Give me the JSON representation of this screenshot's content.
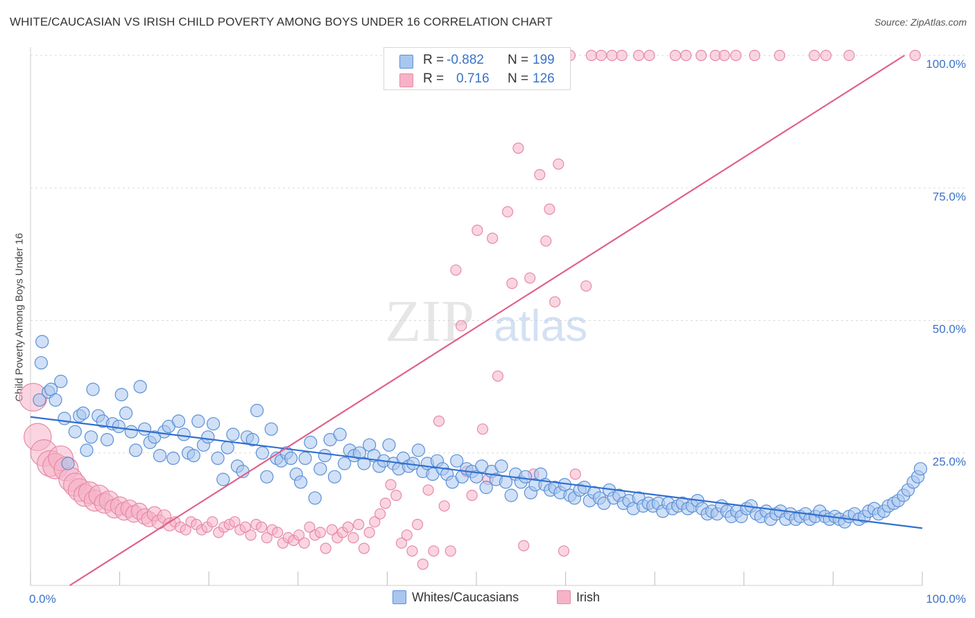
{
  "title": "WHITE/CAUCASIAN VS IRISH CHILD POVERTY AMONG BOYS UNDER 16 CORRELATION CHART",
  "source": "Source: ZipAtlas.com",
  "watermark": {
    "zip": "ZIP",
    "atlas": "atlas"
  },
  "colors": {
    "blue_fill": "#a9c6ee",
    "blue_stroke": "#5b8fd6",
    "blue_line": "#2f6fd0",
    "pink_fill": "#f6b3c8",
    "pink_stroke": "#e58aa6",
    "pink_line": "#e0608a",
    "axis_text": "#3a72c8",
    "grid": "#d9d9d9"
  },
  "legend": {
    "rows": [
      {
        "r_label": "R =",
        "r_value": "-0.882",
        "n_label": "N =",
        "n_value": "199"
      },
      {
        "r_label": "R =",
        "r_value": "0.716",
        "n_label": "N =",
        "n_value": "126"
      }
    ]
  },
  "bottom_legend": {
    "items": [
      "Whites/Caucasians",
      "Irish"
    ]
  },
  "chart_data": {
    "type": "scatter",
    "ylabel": "Child Poverty Among Boys Under 16",
    "xlabel": "",
    "xlim": [
      0,
      100
    ],
    "ylim": [
      0,
      100
    ],
    "x_tick_labels": [
      "0.0%",
      "100.0%"
    ],
    "y_tick_labels": [
      "25.0%",
      "50.0%",
      "75.0%",
      "100.0%"
    ],
    "y_ticks": [
      25,
      50,
      75,
      100
    ],
    "grid": true,
    "legend_position": "top-center",
    "series": [
      {
        "name": "Whites/Caucasians",
        "trend": {
          "x": [
            0,
            100
          ],
          "y": [
            31.8,
            10.8
          ]
        },
        "points": [
          [
            1,
            35
          ],
          [
            1.2,
            42
          ],
          [
            1.3,
            46
          ],
          [
            2,
            36.5
          ],
          [
            2.3,
            37
          ],
          [
            2.8,
            35
          ],
          [
            3.4,
            38.5
          ],
          [
            3.8,
            31.5
          ],
          [
            4.2,
            23
          ],
          [
            5,
            29
          ],
          [
            5.5,
            32
          ],
          [
            5.9,
            32.5
          ],
          [
            6.3,
            25.5
          ],
          [
            6.8,
            28
          ],
          [
            7,
            37
          ],
          [
            7.6,
            32
          ],
          [
            8.1,
            31
          ],
          [
            8.6,
            27.5
          ],
          [
            9.2,
            30.5
          ],
          [
            9.9,
            30
          ],
          [
            10.2,
            36
          ],
          [
            10.7,
            32.5
          ],
          [
            11.3,
            29
          ],
          [
            11.8,
            25.5
          ],
          [
            12.3,
            37.5
          ],
          [
            12.8,
            29.5
          ],
          [
            13.4,
            27
          ],
          [
            13.9,
            28
          ],
          [
            14.5,
            24.5
          ],
          [
            15,
            29
          ],
          [
            15.5,
            30
          ],
          [
            16,
            24
          ],
          [
            16.6,
            31
          ],
          [
            17.2,
            28.5
          ],
          [
            17.7,
            25
          ],
          [
            18.3,
            24.5
          ],
          [
            18.8,
            31
          ],
          [
            19.4,
            26.5
          ],
          [
            19.9,
            28
          ],
          [
            20.5,
            30.5
          ],
          [
            21,
            24
          ],
          [
            21.6,
            20
          ],
          [
            22.1,
            26
          ],
          [
            22.7,
            28.5
          ],
          [
            23.2,
            22.5
          ],
          [
            23.8,
            21.5
          ],
          [
            24.3,
            28
          ],
          [
            24.9,
            27.5
          ],
          [
            25.4,
            33
          ],
          [
            26,
            25
          ],
          [
            26.5,
            20.5
          ],
          [
            27,
            29.5
          ],
          [
            27.6,
            24
          ],
          [
            28.1,
            23.5
          ],
          [
            28.7,
            25
          ],
          [
            29.2,
            24
          ],
          [
            29.8,
            21
          ],
          [
            30.3,
            19.5
          ],
          [
            30.8,
            24
          ],
          [
            31.4,
            27
          ],
          [
            31.9,
            16.5
          ],
          [
            32.5,
            22
          ],
          [
            33,
            24.5
          ],
          [
            33.6,
            27.5
          ],
          [
            34.1,
            20.5
          ],
          [
            34.7,
            28.5
          ],
          [
            35.2,
            23
          ],
          [
            35.8,
            25.5
          ],
          [
            36.3,
            24.5
          ],
          [
            36.9,
            25
          ],
          [
            37.4,
            23
          ],
          [
            38,
            26.5
          ],
          [
            38.5,
            24.5
          ],
          [
            39.1,
            22.5
          ],
          [
            39.6,
            23.5
          ],
          [
            40.2,
            26.5
          ],
          [
            40.7,
            23
          ],
          [
            41.3,
            22
          ],
          [
            41.8,
            24
          ],
          [
            42.4,
            22.5
          ],
          [
            42.9,
            23
          ],
          [
            43.5,
            25.5
          ],
          [
            44,
            21.5
          ],
          [
            44.5,
            23
          ],
          [
            45.1,
            21
          ],
          [
            45.6,
            23.5
          ],
          [
            46.2,
            22
          ],
          [
            46.7,
            21
          ],
          [
            47.3,
            19.5
          ],
          [
            47.8,
            23.5
          ],
          [
            48.4,
            20.5
          ],
          [
            48.9,
            22
          ],
          [
            49.5,
            21.5
          ],
          [
            50,
            20.5
          ],
          [
            50.6,
            22.5
          ],
          [
            51.1,
            18.5
          ],
          [
            51.7,
            21.5
          ],
          [
            52.2,
            20
          ],
          [
            52.8,
            22.5
          ],
          [
            53.3,
            19.5
          ],
          [
            53.9,
            17
          ],
          [
            54.4,
            21
          ],
          [
            55,
            19.5
          ],
          [
            55.5,
            20.5
          ],
          [
            56.1,
            17.5
          ],
          [
            56.6,
            19
          ],
          [
            57.2,
            21
          ],
          [
            57.7,
            19
          ],
          [
            58.3,
            18
          ],
          [
            58.8,
            18.5
          ],
          [
            59.4,
            17.5
          ],
          [
            59.9,
            19
          ],
          [
            60.5,
            17
          ],
          [
            61,
            16.5
          ],
          [
            61.6,
            18
          ],
          [
            62.1,
            18.5
          ],
          [
            62.7,
            16
          ],
          [
            63.2,
            17.5
          ],
          [
            63.8,
            16.5
          ],
          [
            64.3,
            15.5
          ],
          [
            64.9,
            18
          ],
          [
            65.4,
            16.5
          ],
          [
            66,
            17
          ],
          [
            66.5,
            15.5
          ],
          [
            67.1,
            16
          ],
          [
            67.6,
            14.5
          ],
          [
            68.2,
            16.5
          ],
          [
            68.7,
            15
          ],
          [
            69.3,
            15.5
          ],
          [
            69.8,
            15
          ],
          [
            70.4,
            15.5
          ],
          [
            70.9,
            14
          ],
          [
            71.5,
            15.5
          ],
          [
            72,
            14.5
          ],
          [
            72.6,
            15
          ],
          [
            73.1,
            15.5
          ],
          [
            73.7,
            14.5
          ],
          [
            74.2,
            15
          ],
          [
            74.8,
            16
          ],
          [
            75.3,
            14.5
          ],
          [
            75.9,
            13.5
          ],
          [
            76.4,
            14
          ],
          [
            77,
            13.5
          ],
          [
            77.5,
            15
          ],
          [
            78.1,
            14
          ],
          [
            78.6,
            13
          ],
          [
            79.2,
            14
          ],
          [
            79.7,
            13
          ],
          [
            80.3,
            14.5
          ],
          [
            80.8,
            15
          ],
          [
            81.4,
            13.5
          ],
          [
            81.9,
            13
          ],
          [
            82.5,
            14
          ],
          [
            83,
            12.5
          ],
          [
            83.6,
            13.5
          ],
          [
            84.1,
            14
          ],
          [
            84.7,
            12.5
          ],
          [
            85.2,
            13.5
          ],
          [
            85.8,
            12.5
          ],
          [
            86.3,
            13
          ],
          [
            86.9,
            13.5
          ],
          [
            87.4,
            12.5
          ],
          [
            88,
            13
          ],
          [
            88.5,
            14
          ],
          [
            89.1,
            13
          ],
          [
            89.6,
            12.5
          ],
          [
            90.2,
            13
          ],
          [
            90.7,
            12.5
          ],
          [
            91.3,
            12
          ],
          [
            91.8,
            13
          ],
          [
            92.4,
            13.5
          ],
          [
            92.9,
            12.5
          ],
          [
            93.5,
            13
          ],
          [
            94,
            14
          ],
          [
            94.6,
            14.5
          ],
          [
            95.1,
            13.5
          ],
          [
            95.7,
            14
          ],
          [
            96.2,
            15
          ],
          [
            96.8,
            15.5
          ],
          [
            97.3,
            16
          ],
          [
            97.9,
            17
          ],
          [
            98.4,
            18
          ],
          [
            99,
            19.5
          ],
          [
            99.5,
            20.5
          ],
          [
            99.8,
            22
          ]
        ]
      },
      {
        "name": "Irish",
        "trend": {
          "x": [
            4.4,
            98
          ],
          "y": [
            0,
            100
          ]
        },
        "points": [
          [
            0.3,
            35.5
          ],
          [
            0.8,
            28
          ],
          [
            1.5,
            25
          ],
          [
            2.2,
            23
          ],
          [
            2.8,
            22.5
          ],
          [
            3.4,
            24
          ],
          [
            4,
            22
          ],
          [
            4.5,
            20
          ],
          [
            5,
            19
          ],
          [
            5.5,
            18
          ],
          [
            6.1,
            17
          ],
          [
            6.6,
            17.5
          ],
          [
            7.2,
            16
          ],
          [
            7.7,
            17
          ],
          [
            8.3,
            15.5
          ],
          [
            8.8,
            16
          ],
          [
            9.4,
            14.5
          ],
          [
            10,
            15
          ],
          [
            10.5,
            14
          ],
          [
            11.1,
            14.5
          ],
          [
            11.6,
            13.5
          ],
          [
            12.2,
            14
          ],
          [
            12.8,
            13
          ],
          [
            13.3,
            12.5
          ],
          [
            13.9,
            13.5
          ],
          [
            14.4,
            12
          ],
          [
            15,
            13
          ],
          [
            15.6,
            11.5
          ],
          [
            16.2,
            12
          ],
          [
            16.8,
            11
          ],
          [
            17.4,
            10.5
          ],
          [
            18,
            12
          ],
          [
            18.6,
            11.5
          ],
          [
            19.2,
            10.5
          ],
          [
            19.8,
            11
          ],
          [
            20.4,
            12
          ],
          [
            21.1,
            10
          ],
          [
            21.7,
            11
          ],
          [
            22.3,
            11.5
          ],
          [
            22.9,
            12
          ],
          [
            23.5,
            10.5
          ],
          [
            24.1,
            11
          ],
          [
            24.7,
            9.5
          ],
          [
            25.3,
            11.5
          ],
          [
            25.9,
            11
          ],
          [
            26.5,
            9
          ],
          [
            27.1,
            10.5
          ],
          [
            27.7,
            10
          ],
          [
            28.3,
            8
          ],
          [
            28.9,
            9
          ],
          [
            29.5,
            8.5
          ],
          [
            30.1,
            9.5
          ],
          [
            30.7,
            8
          ],
          [
            31.3,
            11
          ],
          [
            31.9,
            9.5
          ],
          [
            32.5,
            10
          ],
          [
            33.1,
            7
          ],
          [
            33.8,
            10.5
          ],
          [
            34.4,
            9
          ],
          [
            35,
            10
          ],
          [
            35.6,
            11
          ],
          [
            36.2,
            9
          ],
          [
            36.8,
            11.5
          ],
          [
            37.4,
            7
          ],
          [
            38,
            10
          ],
          [
            38.6,
            12
          ],
          [
            39.2,
            13.5
          ],
          [
            39.8,
            15.5
          ],
          [
            40.4,
            19
          ],
          [
            41,
            17
          ],
          [
            41.6,
            8
          ],
          [
            42.2,
            9.5
          ],
          [
            42.8,
            6.5
          ],
          [
            43.4,
            11.5
          ],
          [
            44,
            4
          ],
          [
            44.6,
            18
          ],
          [
            45.2,
            6.5
          ],
          [
            45.8,
            31
          ],
          [
            46.4,
            15
          ],
          [
            47.1,
            6.5
          ],
          [
            47.7,
            59.5
          ],
          [
            48.3,
            49
          ],
          [
            48.9,
            21.5
          ],
          [
            49.5,
            17
          ],
          [
            50.1,
            67
          ],
          [
            50.7,
            29.5
          ],
          [
            51.3,
            20
          ],
          [
            51.8,
            65.5
          ],
          [
            52.4,
            39.5
          ],
          [
            53.5,
            70.5
          ],
          [
            54,
            57
          ],
          [
            54.7,
            82.5
          ],
          [
            55.3,
            7.5
          ],
          [
            56,
            58
          ],
          [
            56.4,
            21
          ],
          [
            57.1,
            77.5
          ],
          [
            57.8,
            65
          ],
          [
            58.2,
            71
          ],
          [
            58.8,
            53.5
          ],
          [
            59.2,
            79.5
          ],
          [
            59.8,
            6.5
          ],
          [
            60.5,
            100
          ],
          [
            61.1,
            21
          ],
          [
            62.3,
            56.5
          ],
          [
            62.9,
            100
          ],
          [
            64,
            100
          ],
          [
            65.2,
            100
          ],
          [
            66.3,
            100
          ],
          [
            68.2,
            100
          ],
          [
            69.4,
            100
          ],
          [
            72.3,
            100
          ],
          [
            73.5,
            100
          ],
          [
            75.2,
            100
          ],
          [
            76.8,
            100
          ],
          [
            77.8,
            100
          ],
          [
            79.1,
            100
          ],
          [
            81.2,
            100
          ],
          [
            84,
            100
          ],
          [
            87.9,
            100
          ],
          [
            89.2,
            100
          ],
          [
            91.8,
            100
          ],
          [
            99.2,
            100
          ]
        ]
      }
    ]
  }
}
